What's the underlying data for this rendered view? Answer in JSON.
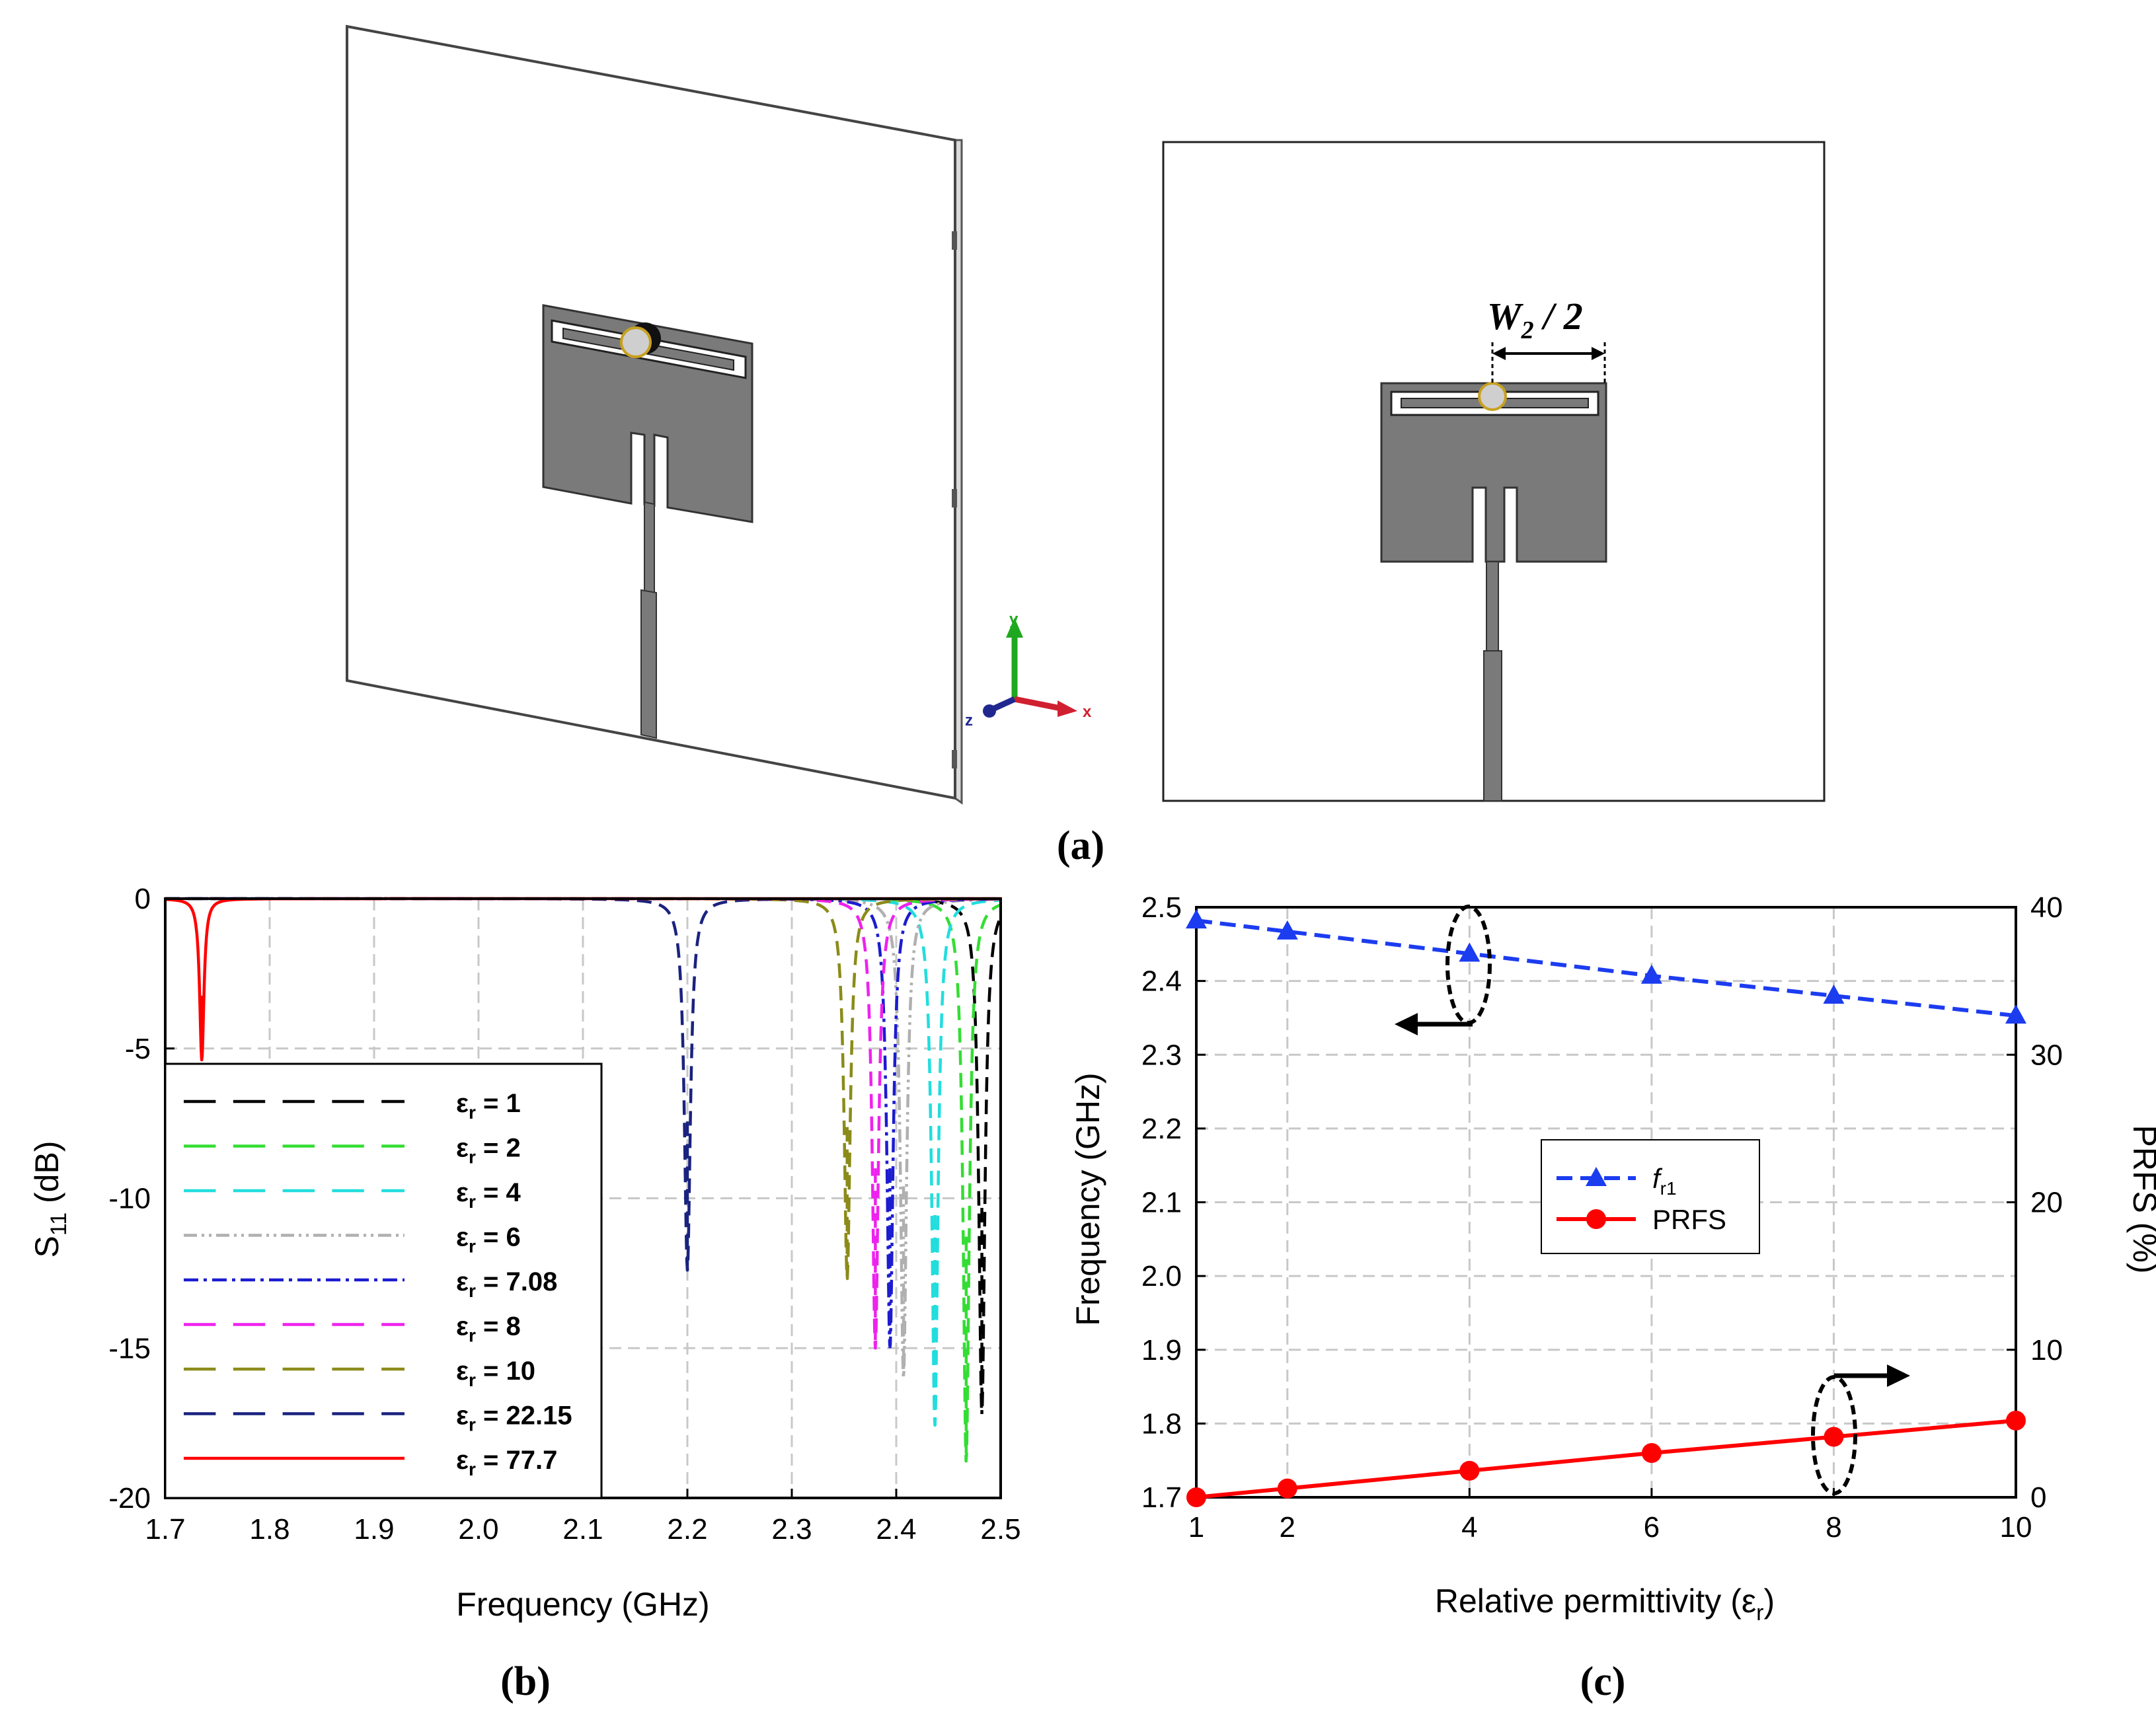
{
  "panel_labels": {
    "a": "(a)",
    "b": "(b)",
    "c": "(c)"
  },
  "antenna": {
    "dimension_label": "W",
    "dimension_sub": "2",
    "dimension_suffix": " / 2",
    "axis_labels": {
      "y": "y",
      "x": "x",
      "z": "z"
    }
  },
  "colors": {
    "patch": "#7a7a7a",
    "blue": "#1c3cf0",
    "red": "#ff0000",
    "arrow_y": "#1fa81f",
    "arrow_x": "#d02030",
    "arrow_z": "#202890"
  },
  "chart_data": [
    {
      "id": "b",
      "type": "line",
      "xlabel": "Frequency (GHz)",
      "ylabel_main": "S",
      "ylabel_sub": "11",
      "ylabel_suffix": " (dB)",
      "xlim": [
        1.7,
        2.5
      ],
      "ylim": [
        -20,
        0
      ],
      "xticks": [
        "1.7",
        "1.8",
        "1.9",
        "2.0",
        "2.1",
        "2.2",
        "2.3",
        "2.4",
        "2.5"
      ],
      "yticks": [
        "0",
        "-5",
        "-10",
        "-15",
        "-20"
      ],
      "grid": true,
      "legend_position": "lower-left",
      "series": [
        {
          "name": "ε",
          "sub": "r",
          "value": "= 1",
          "f0": 2.482,
          "min": -17.2,
          "bw": 0.0035,
          "color": "#000000",
          "dash": "dashed"
        },
        {
          "name": "ε",
          "sub": "r",
          "value": "= 2",
          "f0": 2.467,
          "min": -18.8,
          "bw": 0.0035,
          "color": "#33dd33",
          "dash": "dashed"
        },
        {
          "name": "ε",
          "sub": "r",
          "value": "= 4",
          "f0": 2.437,
          "min": -17.6,
          "bw": 0.0035,
          "color": "#22dddd",
          "dash": "dashed"
        },
        {
          "name": "ε",
          "sub": "r",
          "value": "= 6",
          "f0": 2.407,
          "min": -16.0,
          "bw": 0.0035,
          "color": "#b0b0b0",
          "dash": "dashdotdot"
        },
        {
          "name": "ε",
          "sub": "r",
          "value": "= 7.08",
          "f0": 2.394,
          "min": -15.0,
          "bw": 0.0035,
          "color": "#1c1cd0",
          "dash": "dashdot"
        },
        {
          "name": "ε",
          "sub": "r",
          "value": "= 8",
          "f0": 2.38,
          "min": -15.0,
          "bw": 0.0035,
          "color": "#ee22ee",
          "dash": "dashed"
        },
        {
          "name": "ε",
          "sub": "r",
          "value": "= 10",
          "f0": 2.353,
          "min": -12.7,
          "bw": 0.0035,
          "color": "#8b8b1a",
          "dash": "dashed"
        },
        {
          "name": "ε",
          "sub": "r",
          "value": "= 22.15",
          "f0": 2.2,
          "min": -12.4,
          "bw": 0.0035,
          "color": "#1a237e",
          "dash": "dashed"
        },
        {
          "name": "ε",
          "sub": "r",
          "value": "= 77.7",
          "f0": 1.735,
          "min": -5.4,
          "bw": 0.0025,
          "color": "#ff0000",
          "dash": "solid"
        }
      ]
    },
    {
      "id": "c",
      "type": "line",
      "xlabel": "Relative permittivity (ε",
      "xlabel_sub": "r",
      "xlabel_suffix": ")",
      "ylabel_left": "Frequency (GHz)",
      "ylabel_right": "PRFS (%)",
      "xlim": [
        1,
        10
      ],
      "ylim_left": [
        1.7,
        2.5
      ],
      "ylim_right": [
        0,
        40
      ],
      "xticks": [
        1,
        2,
        4,
        6,
        8,
        10
      ],
      "xtick_labels": [
        "1",
        "2",
        "4",
        "6",
        "8",
        "10"
      ],
      "yticks_left": [
        "2.5",
        "2.4",
        "2.3",
        "2.2",
        "2.1",
        "2.0",
        "1.9",
        "1.8",
        "1.7"
      ],
      "yticks_right": [
        "40",
        "30",
        "20",
        "10",
        "0"
      ],
      "grid": true,
      "legend_position": "center",
      "series": [
        {
          "name": "f",
          "sub": "r1",
          "axis": "left",
          "x": [
            1,
            2,
            4,
            6,
            8,
            10
          ],
          "y": [
            2.482,
            2.467,
            2.437,
            2.407,
            2.38,
            2.353
          ],
          "color": "#1c3cf0",
          "marker": "triangle",
          "dash": "dashed"
        },
        {
          "name": "PRFS",
          "axis": "right",
          "x": [
            1,
            2,
            4,
            6,
            8,
            10
          ],
          "y": [
            0,
            0.6,
            1.8,
            3.0,
            4.1,
            5.2
          ],
          "color": "#ff0000",
          "marker": "circle",
          "dash": "solid"
        }
      ]
    }
  ]
}
